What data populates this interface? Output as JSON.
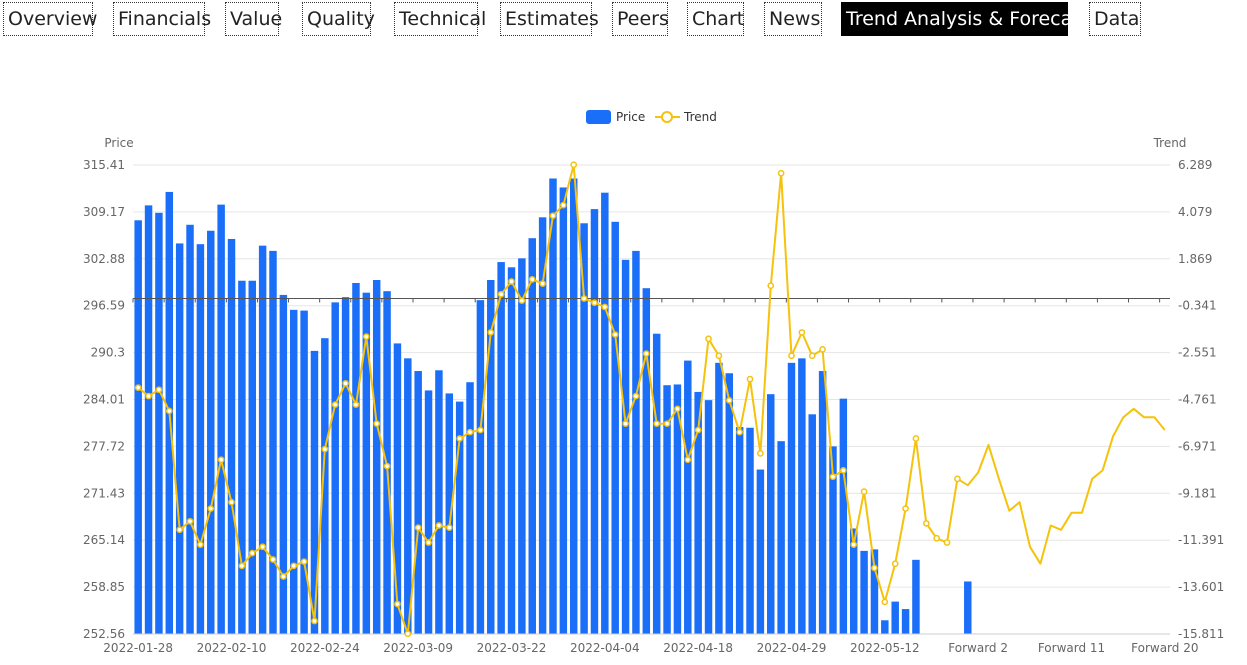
{
  "tabs": [
    {
      "label": "Overview",
      "active": false
    },
    {
      "label": "Financials",
      "active": false
    },
    {
      "label": "Value",
      "active": false
    },
    {
      "label": "Quality",
      "active": false
    },
    {
      "label": "Technical",
      "active": false
    },
    {
      "label": "Estimates",
      "active": false
    },
    {
      "label": "Peers",
      "active": false
    },
    {
      "label": "Chart",
      "active": false
    },
    {
      "label": "News",
      "active": false
    },
    {
      "label": "Trend Analysis & Forecast",
      "active": true
    },
    {
      "label": "Data",
      "active": false
    }
  ],
  "chart_data": {
    "type": "bar",
    "title": "",
    "legend": {
      "position": "top-center",
      "items": [
        {
          "name": "Price",
          "kind": "bar"
        },
        {
          "name": "Trend",
          "kind": "line"
        }
      ]
    },
    "left_axis": {
      "label": "Price",
      "min": 252.56,
      "max": 315.41,
      "ticks": [
        "315.41",
        "309.17",
        "302.88",
        "296.59",
        "290.3",
        "284.01",
        "277.72",
        "271.43",
        "265.14",
        "258.85",
        "252.56"
      ]
    },
    "right_axis": {
      "label": "Trend",
      "min": -15.811,
      "max": 6.289,
      "ticks": [
        "6.289",
        "4.079",
        "1.869",
        "-0.341",
        "-2.551",
        "-4.761",
        "-6.971",
        "-9.181",
        "-11.391",
        "-13.601",
        "-15.811"
      ]
    },
    "x_tick_labels": [
      {
        "label": "2022-01-28",
        "index": 0
      },
      {
        "label": "2022-02-10",
        "index": 9
      },
      {
        "label": "2022-02-24",
        "index": 18
      },
      {
        "label": "2022-03-09",
        "index": 27
      },
      {
        "label": "2022-03-22",
        "index": 36
      },
      {
        "label": "2022-04-04",
        "index": 45
      },
      {
        "label": "2022-04-18",
        "index": 54
      },
      {
        "label": "2022-04-29",
        "index": 63
      },
      {
        "label": "2022-05-12",
        "index": 72
      },
      {
        "label": "Forward 2",
        "index": 81
      },
      {
        "label": "Forward 11",
        "index": 90
      },
      {
        "label": "Forward 20",
        "index": 99
      }
    ],
    "category_count": 100,
    "colors": {
      "price": "#1a6ef7",
      "trend": "#f5c20c",
      "grid": "#e6e6e6",
      "zero_line": "#555555",
      "axis_text": "#666666"
    },
    "series": [
      {
        "name": "Price",
        "axis": "left",
        "type": "bar",
        "values": [
          308.0,
          310.0,
          309.0,
          311.8,
          304.9,
          307.4,
          304.8,
          306.6,
          310.1,
          305.5,
          299.9,
          299.9,
          304.6,
          303.9,
          298.0,
          296.0,
          295.9,
          290.5,
          292.2,
          297.0,
          297.7,
          299.6,
          298.3,
          300.0,
          298.5,
          291.5,
          289.5,
          287.8,
          285.2,
          287.9,
          284.8,
          283.7,
          286.3,
          297.3,
          300.0,
          302.4,
          301.7,
          302.9,
          305.6,
          308.4,
          313.6,
          312.4,
          313.6,
          307.6,
          309.5,
          311.7,
          307.8,
          302.7,
          303.9,
          298.9,
          292.8,
          285.9,
          286.0,
          289.2,
          285.0,
          283.9,
          288.9,
          287.5,
          280.3,
          280.2,
          274.6,
          284.7,
          278.4,
          288.9,
          289.5,
          282.0,
          287.8,
          277.7,
          284.1,
          266.7,
          263.7,
          263.9,
          254.4,
          256.9,
          255.9,
          262.5,
          252.6,
          252.6,
          252.6,
          252.6,
          259.6
        ]
      },
      {
        "name": "Trend",
        "axis": "right",
        "type": "line",
        "values": [
          -4.2,
          -4.6,
          -4.3,
          -5.3,
          -10.9,
          -10.5,
          -11.6,
          -9.9,
          -7.6,
          -9.6,
          -12.6,
          -12.0,
          -11.7,
          -12.3,
          -13.1,
          -12.6,
          -12.4,
          -15.2,
          -7.1,
          -5.0,
          -4.0,
          -5.0,
          -1.8,
          -5.9,
          -7.9,
          -14.4,
          -15.8,
          -10.8,
          -11.5,
          -10.7,
          -10.8,
          -6.6,
          -6.3,
          -6.2,
          -1.6,
          0.2,
          0.8,
          -0.1,
          0.9,
          0.7,
          3.9,
          4.4,
          6.3,
          0.0,
          -0.2,
          -0.4,
          -1.7,
          -5.9,
          -4.6,
          -2.6,
          -5.9,
          -5.9,
          -5.2,
          -7.6,
          -6.2,
          -1.9,
          -2.7,
          -4.8,
          -6.3,
          -3.8,
          -7.3,
          0.6,
          5.9,
          -2.7,
          -1.6,
          -2.7,
          -2.4,
          -8.4,
          -8.1,
          -11.6,
          -9.1,
          -12.7,
          -14.3,
          -12.5,
          -9.9,
          -6.6,
          -10.6,
          -11.3,
          -11.5,
          -8.5,
          -8.8,
          -8.2,
          -6.9,
          -8.5,
          -10.0,
          -9.6,
          -11.7,
          -12.5,
          -10.7,
          -10.9,
          -10.1,
          -10.1,
          -8.5,
          -8.1,
          -6.5,
          -5.6,
          -5.2,
          -5.6,
          -5.6,
          -6.2
        ]
      }
    ]
  }
}
